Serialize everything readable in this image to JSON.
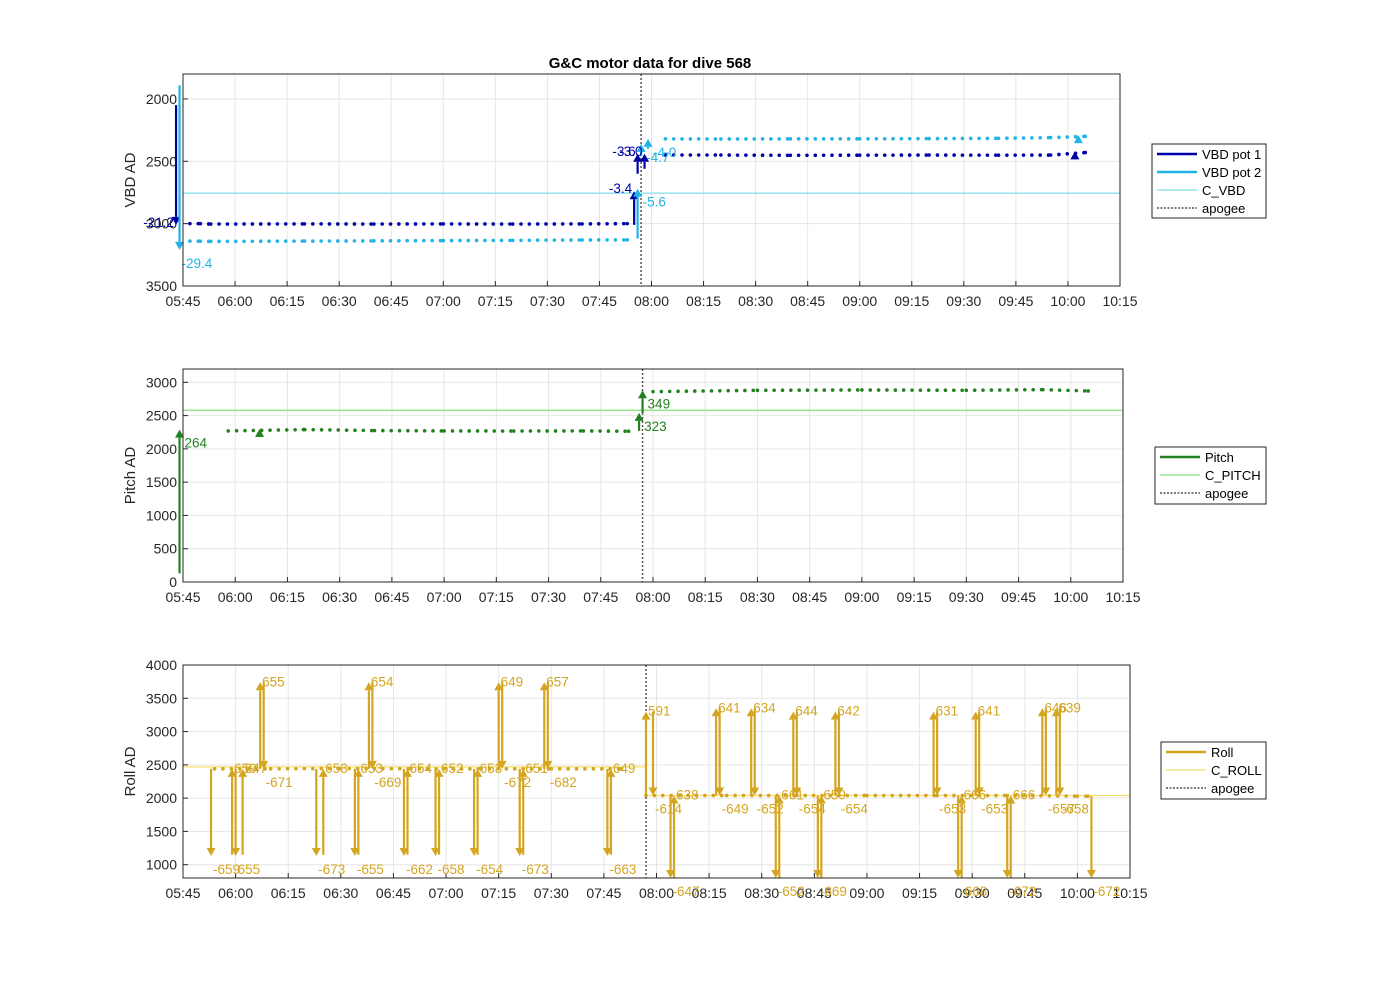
{
  "title": "G&C motor data for dive 568",
  "x_ticks": [
    "05:45",
    "06:00",
    "06:15",
    "06:30",
    "06:45",
    "07:00",
    "07:15",
    "07:30",
    "07:45",
    "08:00",
    "08:15",
    "08:30",
    "08:45",
    "09:00",
    "09:15",
    "09:30",
    "09:45",
    "10:00",
    "10:15"
  ],
  "chart_data": [
    {
      "type": "line",
      "title": "G&C motor data for dive 568",
      "xlabel": "",
      "ylabel": "VBD AD",
      "xlim": [
        "05:45",
        "10:15"
      ],
      "ylim": [
        3500,
        1800
      ],
      "y_reversed": true,
      "y_ticks": [
        2000,
        2500,
        3000,
        3500
      ],
      "grid": true,
      "legend_position": "right",
      "apogee": "07:57",
      "series": [
        {
          "name": "VBD pot 1",
          "color": "#0000a8",
          "points": [
            [
              "05:47",
              3000
            ],
            [
              "05:50",
              3000
            ],
            [
              "05:53",
              3003
            ],
            [
              "06:20",
              3002
            ],
            [
              "06:40",
              3003
            ],
            [
              "07:00",
              3002
            ],
            [
              "07:20",
              3003
            ],
            [
              "07:40",
              3002
            ],
            [
              "07:53",
              3000
            ],
            [
              "08:04",
              2450
            ],
            [
              "08:20",
              2450
            ],
            [
              "08:40",
              2452
            ],
            [
              "09:00",
              2451
            ],
            [
              "09:20",
              2450
            ],
            [
              "09:40",
              2451
            ],
            [
              "09:55",
              2450
            ],
            [
              "10:05",
              2430
            ]
          ]
        },
        {
          "name": "VBD pot 2",
          "color": "#21b3e6",
          "points": [
            [
              "05:47",
              3140
            ],
            [
              "05:50",
              3141
            ],
            [
              "05:53",
              3142
            ],
            [
              "06:20",
              3140
            ],
            [
              "06:40",
              3138
            ],
            [
              "07:00",
              3136
            ],
            [
              "07:20",
              3134
            ],
            [
              "07:40",
              3131
            ],
            [
              "07:53",
              3130
            ],
            [
              "08:04",
              2320
            ],
            [
              "08:20",
              2321
            ],
            [
              "08:40",
              2320
            ],
            [
              "09:00",
              2320
            ],
            [
              "09:20",
              2318
            ],
            [
              "09:40",
              2316
            ],
            [
              "09:55",
              2310
            ],
            [
              "10:05",
              2300
            ]
          ]
        },
        {
          "name": "C_VBD",
          "color": "#7fdde8",
          "constant": 2755
        }
      ],
      "moves": [
        {
          "series": "VBD pot 1",
          "time": "05:43",
          "from": 2050,
          "to": 3010,
          "label": "-21.2",
          "label_side": "left"
        },
        {
          "series": "VBD pot 2",
          "time": "05:44",
          "from": 1890,
          "to": 3210,
          "label": "-29.4",
          "label_side": "below"
        },
        {
          "series": "VBD pot 1",
          "time": "07:55",
          "from": 3010,
          "to": 2740,
          "label": "-3.4",
          "label_side": "left"
        },
        {
          "series": "VBD pot 2",
          "time": "07:56",
          "from": 3120,
          "to": 2720,
          "label": "-5.6",
          "label_side": "right"
        },
        {
          "series": "VBD pot 1",
          "time": "07:56",
          "from": 2600,
          "to": 2440,
          "label": "-3.6",
          "label_side": "left"
        },
        {
          "series": "VBD pot 2",
          "time": "07:57",
          "from": 2460,
          "to": 2360,
          "label": "-4.7",
          "label_side": "right"
        },
        {
          "series": "VBD pot 1",
          "time": "07:58",
          "from": 2560,
          "to": 2440,
          "label": "-3.0",
          "label_side": "left"
        },
        {
          "series": "VBD pot 2",
          "time": "07:59",
          "from": 2400,
          "to": 2320,
          "label": "-4.0",
          "label_side": "right"
        },
        {
          "series": "VBD pot 1",
          "time": "10:02",
          "from": 2450,
          "to": 2420,
          "label": "",
          "label_side": "none"
        },
        {
          "series": "VBD pot 2",
          "time": "10:03",
          "from": 2330,
          "to": 2290,
          "label": "",
          "label_side": "none"
        }
      ]
    },
    {
      "type": "line",
      "xlabel": "",
      "ylabel": "Pitch AD",
      "xlim": [
        "05:45",
        "10:15"
      ],
      "ylim": [
        0,
        3200
      ],
      "y_ticks": [
        0,
        500,
        1000,
        1500,
        2000,
        2500,
        3000
      ],
      "grid": true,
      "legend_position": "right",
      "apogee": "07:57",
      "series": [
        {
          "name": "Pitch",
          "color": "#23811f",
          "points": [
            [
              "05:58",
              2270
            ],
            [
              "06:20",
              2290
            ],
            [
              "06:40",
              2275
            ],
            [
              "07:00",
              2270
            ],
            [
              "07:20",
              2268
            ],
            [
              "07:40",
              2270
            ],
            [
              "07:53",
              2265
            ],
            [
              "08:00",
              2860
            ],
            [
              "08:30",
              2880
            ],
            [
              "09:00",
              2885
            ],
            [
              "09:30",
              2880
            ],
            [
              "09:52",
              2890
            ],
            [
              "10:05",
              2870
            ]
          ]
        },
        {
          "name": "C_PITCH",
          "color": "#84e17a",
          "constant": 2580
        }
      ],
      "moves": [
        {
          "time": "05:44",
          "from": 130,
          "to": 2290,
          "label": "264",
          "label_side": "right"
        },
        {
          "time": "06:07",
          "from": 2260,
          "to": 2300,
          "label": "",
          "label_side": "none"
        },
        {
          "time": "07:56",
          "from": 2270,
          "to": 2540,
          "label": "323",
          "label_side": "right"
        },
        {
          "time": "07:57",
          "from": 2540,
          "to": 2880,
          "label": "349",
          "label_side": "right"
        }
      ]
    },
    {
      "type": "line",
      "xlabel": "",
      "ylabel": "Roll AD",
      "xlim": [
        "05:45",
        "10:15"
      ],
      "ylim": [
        800,
        4000
      ],
      "y_ticks": [
        1000,
        1500,
        2000,
        2500,
        3000,
        3500,
        4000
      ],
      "grid": true,
      "legend_position": "right",
      "apogee": "07:57",
      "series": [
        {
          "name": "Roll",
          "color": "#d4a520",
          "points": [
            [
              "05:54",
              2440
            ],
            [
              "06:10",
              2440
            ],
            [
              "06:30",
              2445
            ],
            [
              "06:50",
              2440
            ],
            [
              "07:10",
              2440
            ],
            [
              "07:30",
              2440
            ],
            [
              "07:50",
              2440
            ],
            [
              "07:57",
              2040
            ],
            [
              "08:20",
              2040
            ],
            [
              "08:40",
              2040
            ],
            [
              "09:00",
              2040
            ],
            [
              "09:20",
              2040
            ],
            [
              "09:40",
              2040
            ],
            [
              "10:00",
              2030
            ],
            [
              "10:03",
              2030
            ]
          ]
        },
        {
          "name": "C_ROLL",
          "color": "#f2e06b",
          "constant_segments": [
            [
              "05:45",
              "07:57",
              2470
            ],
            [
              "07:57",
              "10:15",
              2040
            ]
          ]
        }
      ],
      "moves": [
        {
          "time": "05:53",
          "from": 2440,
          "to": 1130,
          "label": "-659",
          "label_side": "below"
        },
        {
          "time": "05:59",
          "from": 1150,
          "to": 2440,
          "label": "659",
          "label_side": "above"
        },
        {
          "time": "06:00",
          "from": 2440,
          "to": 1130,
          "label": "655",
          "label_side": "below"
        },
        {
          "time": "06:02",
          "from": 1150,
          "to": 2440,
          "label": "647",
          "label_side": "above"
        },
        {
          "time": "06:07",
          "from": 2440,
          "to": 3740,
          "label": "655",
          "label_side": "above"
        },
        {
          "time": "06:08",
          "from": 3740,
          "to": 2440,
          "label": "-671",
          "label_side": "below"
        },
        {
          "time": "06:23",
          "from": 2440,
          "to": 1130,
          "label": "-673",
          "label_side": "below"
        },
        {
          "time": "06:25",
          "from": 1150,
          "to": 2440,
          "label": "653",
          "label_side": "above"
        },
        {
          "time": "06:34",
          "from": 2440,
          "to": 1130,
          "label": "-655",
          "label_side": "below"
        },
        {
          "time": "06:35",
          "from": 1150,
          "to": 2440,
          "label": "653",
          "label_side": "above"
        },
        {
          "time": "06:38",
          "from": 2440,
          "to": 3740,
          "label": "654",
          "label_side": "above"
        },
        {
          "time": "06:39",
          "from": 3740,
          "to": 2440,
          "label": "-669",
          "label_side": "below"
        },
        {
          "time": "06:48",
          "from": 2440,
          "to": 1130,
          "label": "-662",
          "label_side": "below"
        },
        {
          "time": "06:49",
          "from": 1150,
          "to": 2440,
          "label": "654",
          "label_side": "above"
        },
        {
          "time": "06:57",
          "from": 2440,
          "to": 1130,
          "label": "-658",
          "label_side": "below"
        },
        {
          "time": "06:58",
          "from": 1150,
          "to": 2440,
          "label": "652",
          "label_side": "above"
        },
        {
          "time": "07:08",
          "from": 2440,
          "to": 1130,
          "label": "-654",
          "label_side": "below"
        },
        {
          "time": "07:09",
          "from": 1150,
          "to": 2440,
          "label": "653",
          "label_side": "above"
        },
        {
          "time": "07:15",
          "from": 2440,
          "to": 3740,
          "label": "649",
          "label_side": "above"
        },
        {
          "time": "07:16",
          "from": 3740,
          "to": 2440,
          "label": "-672",
          "label_side": "below"
        },
        {
          "time": "07:21",
          "from": 2440,
          "to": 1130,
          "label": "-673",
          "label_side": "below"
        },
        {
          "time": "07:22",
          "from": 1150,
          "to": 2440,
          "label": "651",
          "label_side": "above"
        },
        {
          "time": "07:28",
          "from": 2440,
          "to": 3740,
          "label": "657",
          "label_side": "above"
        },
        {
          "time": "07:29",
          "from": 3740,
          "to": 2440,
          "label": "-682",
          "label_side": "below"
        },
        {
          "time": "07:46",
          "from": 2440,
          "to": 1130,
          "label": "-663",
          "label_side": "below"
        },
        {
          "time": "07:47",
          "from": 1150,
          "to": 2440,
          "label": "649",
          "label_side": "above"
        },
        {
          "time": "07:57",
          "from": 2040,
          "to": 3300,
          "label": "591",
          "label_side": "above"
        },
        {
          "time": "07:59",
          "from": 3300,
          "to": 2040,
          "label": "-614",
          "label_side": "below"
        },
        {
          "time": "08:04",
          "from": 2040,
          "to": 800,
          "label": "-647",
          "label_side": "below"
        },
        {
          "time": "08:05",
          "from": 800,
          "to": 2040,
          "label": "638",
          "label_side": "above"
        },
        {
          "time": "08:17",
          "from": 2040,
          "to": 3350,
          "label": "641",
          "label_side": "above"
        },
        {
          "time": "08:18",
          "from": 3350,
          "to": 2040,
          "label": "-649",
          "label_side": "below"
        },
        {
          "time": "08:27",
          "from": 2040,
          "to": 3350,
          "label": "634",
          "label_side": "above"
        },
        {
          "time": "08:28",
          "from": 3350,
          "to": 2040,
          "label": "-652",
          "label_side": "below"
        },
        {
          "time": "08:34",
          "from": 2040,
          "to": 800,
          "label": "-652",
          "label_side": "below"
        },
        {
          "time": "08:35",
          "from": 800,
          "to": 2040,
          "label": "661",
          "label_side": "above"
        },
        {
          "time": "08:39",
          "from": 2040,
          "to": 3300,
          "label": "644",
          "label_side": "above"
        },
        {
          "time": "08:40",
          "from": 3300,
          "to": 2040,
          "label": "-654",
          "label_side": "below"
        },
        {
          "time": "08:46",
          "from": 2040,
          "to": 800,
          "label": "-669",
          "label_side": "below"
        },
        {
          "time": "08:47",
          "from": 800,
          "to": 2040,
          "label": "659",
          "label_side": "above"
        },
        {
          "time": "08:51",
          "from": 2040,
          "to": 3300,
          "label": "642",
          "label_side": "above"
        },
        {
          "time": "08:52",
          "from": 3300,
          "to": 2040,
          "label": "-654",
          "label_side": "below"
        },
        {
          "time": "09:19",
          "from": 2040,
          "to": 3300,
          "label": "631",
          "label_side": "above"
        },
        {
          "time": "09:20",
          "from": 3300,
          "to": 2040,
          "label": "-653",
          "label_side": "below"
        },
        {
          "time": "09:26",
          "from": 2040,
          "to": 800,
          "label": "-668",
          "label_side": "below"
        },
        {
          "time": "09:27",
          "from": 800,
          "to": 2040,
          "label": "666",
          "label_side": "above"
        },
        {
          "time": "09:31",
          "from": 2040,
          "to": 3300,
          "label": "641",
          "label_side": "above"
        },
        {
          "time": "09:32",
          "from": 3300,
          "to": 2040,
          "label": "-653",
          "label_side": "below"
        },
        {
          "time": "09:40",
          "from": 2040,
          "to": 800,
          "label": "-672",
          "label_side": "below"
        },
        {
          "time": "09:41",
          "from": 800,
          "to": 2040,
          "label": "666",
          "label_side": "above"
        },
        {
          "time": "09:50",
          "from": 2040,
          "to": 3350,
          "label": "646",
          "label_side": "above"
        },
        {
          "time": "09:51",
          "from": 3350,
          "to": 2040,
          "label": "-657",
          "label_side": "below"
        },
        {
          "time": "09:54",
          "from": 2040,
          "to": 3350,
          "label": "639",
          "label_side": "above"
        },
        {
          "time": "09:55",
          "from": 3350,
          "to": 2040,
          "label": "-658",
          "label_side": "below"
        },
        {
          "time": "10:04",
          "from": 2030,
          "to": 800,
          "label": "-672",
          "label_side": "below"
        }
      ]
    }
  ],
  "legends": [
    {
      "entries": [
        {
          "label": "VBD pot 1",
          "color": "#0000a8",
          "style": "solid",
          "width": 2.5
        },
        {
          "label": "VBD pot 2",
          "color": "#21b3e6",
          "style": "solid",
          "width": 2.5
        },
        {
          "label": "C_VBD",
          "color": "#7fdde8",
          "style": "solid",
          "width": 1.2
        },
        {
          "label": "apogee",
          "color": "#555555",
          "style": "dotted",
          "width": 1.5
        }
      ]
    },
    {
      "entries": [
        {
          "label": "Pitch",
          "color": "#23811f",
          "style": "solid",
          "width": 2.5
        },
        {
          "label": "C_PITCH",
          "color": "#84e17a",
          "style": "solid",
          "width": 1.2
        },
        {
          "label": "apogee",
          "color": "#555555",
          "style": "dotted",
          "width": 1.5
        }
      ]
    },
    {
      "entries": [
        {
          "label": "Roll",
          "color": "#d4a520",
          "style": "solid",
          "width": 2.5
        },
        {
          "label": "C_ROLL",
          "color": "#f2e06b",
          "style": "solid",
          "width": 1.2
        },
        {
          "label": "apogee",
          "color": "#555555",
          "style": "dotted",
          "width": 1.5
        }
      ]
    }
  ]
}
